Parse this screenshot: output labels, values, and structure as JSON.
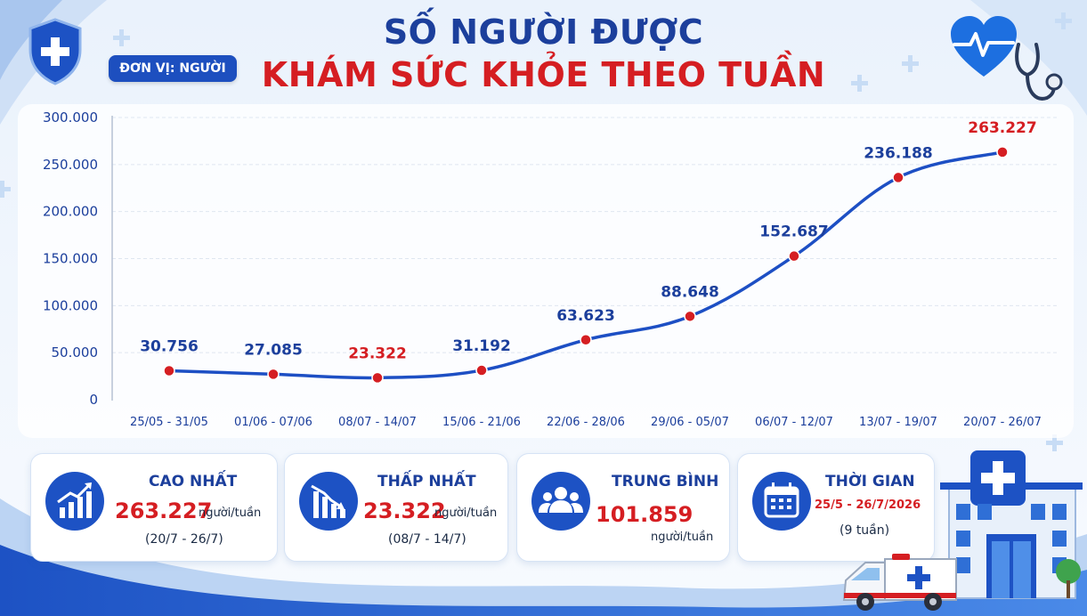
{
  "title_line1": "SỐ NGƯỜI ĐƯỢC",
  "title_line2": "KHÁM SỨC KHỎE THEO TUẦN",
  "unit_label": "ĐƠN VỊ: NGƯỜI",
  "colors": {
    "line": "#1d4fc4",
    "point": "#d51e22",
    "label_blue": "#1c3f9c",
    "label_red": "#d51e22",
    "accent": "#1d52c4"
  },
  "chart_data": {
    "type": "line",
    "categories": [
      "25/05 - 31/05",
      "01/06 - 07/06",
      "08/07 - 14/07",
      "15/06 - 21/06",
      "22/06 - 28/06",
      "29/06 - 05/07",
      "06/07 - 12/07",
      "13/07 - 19/07",
      "20/07 - 26/07"
    ],
    "values": [
      30756,
      27085,
      23322,
      31192,
      63623,
      88648,
      152687,
      236188,
      263227
    ],
    "value_labels": [
      "30.756",
      "27.085",
      "23.322",
      "31.192",
      "63.623",
      "88.648",
      "152.687",
      "236.188",
      "263.227"
    ],
    "highlight_labels": [
      2,
      8
    ],
    "yticks": [
      0,
      50000,
      100000,
      150000,
      200000,
      250000,
      300000
    ],
    "ytick_labels": [
      "0",
      "50.000",
      "100.000",
      "150.000",
      "200.000",
      "250.000",
      "300.000"
    ],
    "ylim": [
      0,
      300000
    ],
    "grid": true,
    "title": "SỐ NGƯỜI ĐƯỢC KHÁM SỨC KHỎE THEO TUẦN",
    "xlabel": "",
    "ylabel": ""
  },
  "cards": {
    "max": {
      "title": "CAO NHẤT",
      "value": "263.227",
      "unit": "người/tuần",
      "sub": "(20/7 - 26/7)",
      "icon": "trend-up-chart-icon"
    },
    "min": {
      "title": "THẤP NHẤT",
      "value": "23.322",
      "unit": "người/tuần",
      "sub": "(08/7 - 14/7)",
      "icon": "trend-down-chart-icon"
    },
    "avg": {
      "title": "TRUNG BÌNH",
      "value": "101.859",
      "unit": "người/tuần",
      "icon": "people-group-icon"
    },
    "time": {
      "title": "THỜI GIAN",
      "range": "25/5 - 26/7/2026",
      "sub": "(9 tuần)",
      "icon": "calendar-icon"
    }
  },
  "decor_icons": [
    "shield-cross-icon",
    "heart-pulse-icon",
    "stethoscope-icon",
    "hospital-icon",
    "ambulance-icon"
  ]
}
